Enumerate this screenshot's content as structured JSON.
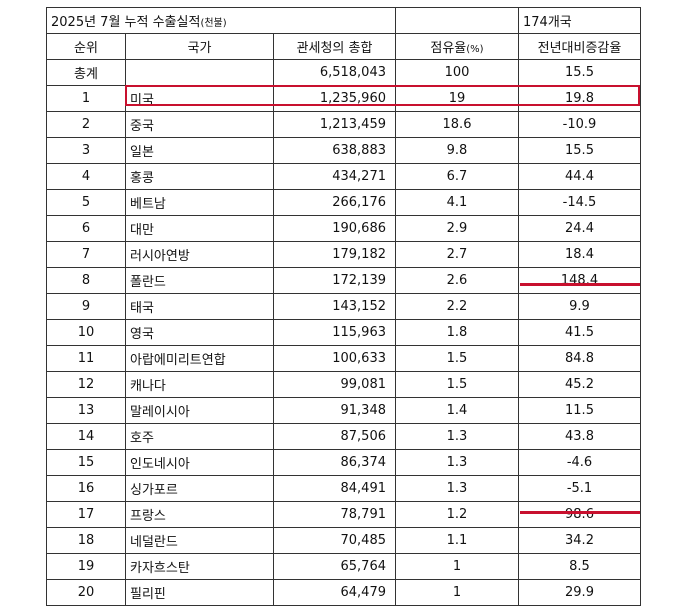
{
  "title": {
    "main": "2025년 7월 누적 수출실적",
    "unit": "(천불)",
    "countries": "174개국"
  },
  "headers": [
    "순위",
    "국가",
    "관세청의 총합",
    "점유율",
    "(%)",
    "전년대비증감율"
  ],
  "total": {
    "rank": "총계",
    "country": "",
    "value": "6,518,043",
    "share": "100",
    "growth": "15.5"
  },
  "rows": [
    {
      "rank": "1",
      "country": "미국",
      "value": "1,235,960",
      "share": "19",
      "growth": "19.8"
    },
    {
      "rank": "2",
      "country": "중국",
      "value": "1,213,459",
      "share": "18.6",
      "growth": "-10.9"
    },
    {
      "rank": "3",
      "country": "일본",
      "value": "638,883",
      "share": "9.8",
      "growth": "15.5"
    },
    {
      "rank": "4",
      "country": "홍콩",
      "value": "434,271",
      "share": "6.7",
      "growth": "44.4"
    },
    {
      "rank": "5",
      "country": "베트남",
      "value": "266,176",
      "share": "4.1",
      "growth": "-14.5"
    },
    {
      "rank": "6",
      "country": "대만",
      "value": "190,686",
      "share": "2.9",
      "growth": "24.4"
    },
    {
      "rank": "7",
      "country": "러시아연방",
      "value": "179,182",
      "share": "2.7",
      "growth": "18.4"
    },
    {
      "rank": "8",
      "country": "폴란드",
      "value": "172,139",
      "share": "2.6",
      "growth": "148.4"
    },
    {
      "rank": "9",
      "country": "태국",
      "value": "143,152",
      "share": "2.2",
      "growth": "9.9"
    },
    {
      "rank": "10",
      "country": "영국",
      "value": "115,963",
      "share": "1.8",
      "growth": "41.5"
    },
    {
      "rank": "11",
      "country": "아랍에미리트연합",
      "value": "100,633",
      "share": "1.5",
      "growth": "84.8"
    },
    {
      "rank": "12",
      "country": "캐나다",
      "value": "99,081",
      "share": "1.5",
      "growth": "45.2"
    },
    {
      "rank": "13",
      "country": "말레이시아",
      "value": "91,348",
      "share": "1.4",
      "growth": "11.5"
    },
    {
      "rank": "14",
      "country": "호주",
      "value": "87,506",
      "share": "1.3",
      "growth": "43.8"
    },
    {
      "rank": "15",
      "country": "인도네시아",
      "value": "86,374",
      "share": "1.3",
      "growth": "-4.6"
    },
    {
      "rank": "16",
      "country": "싱가포르",
      "value": "84,491",
      "share": "1.3",
      "growth": "-5.1"
    },
    {
      "rank": "17",
      "country": "프랑스",
      "value": "78,791",
      "share": "1.2",
      "growth": "98.6"
    },
    {
      "rank": "18",
      "country": "네덜란드",
      "value": "70,485",
      "share": "1.1",
      "growth": "34.2"
    },
    {
      "rank": "19",
      "country": "카자흐스탄",
      "value": "65,764",
      "share": "1",
      "growth": "8.5"
    },
    {
      "rank": "20",
      "country": "필리핀",
      "value": "64,479",
      "share": "1",
      "growth": "29.9"
    }
  ],
  "highlight_color": "#c8102e"
}
